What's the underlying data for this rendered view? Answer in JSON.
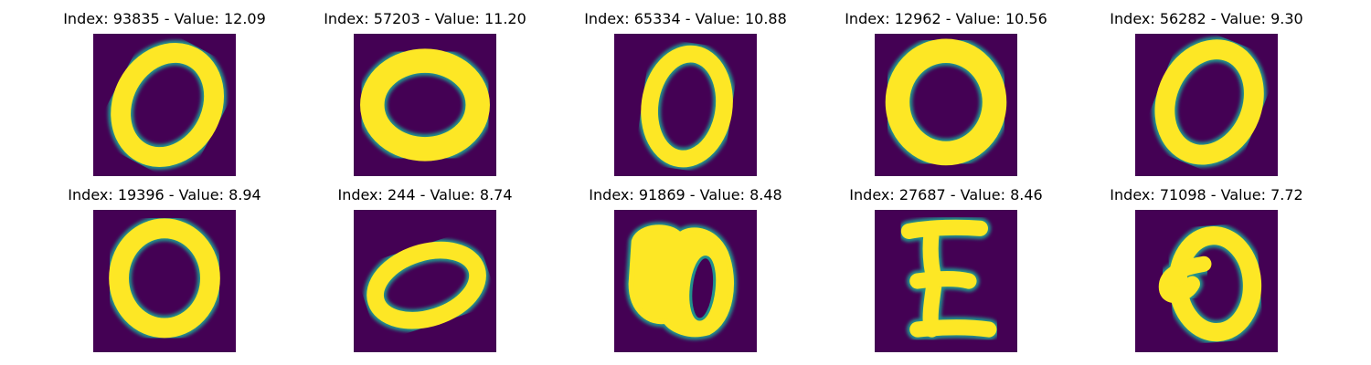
{
  "figure": {
    "rows": 2,
    "columns": 5,
    "colormap": "viridis",
    "background_color": "#440154",
    "foreground_color": "#fde725",
    "edge_color": "#21918c",
    "panels": [
      {
        "title": "Index: 93835 - Value: 12.09",
        "content": "handwritten digit 0, slanted ring"
      },
      {
        "title": "Index: 57203 - Value: 11.20",
        "content": "handwritten digit 0, thick wide ring"
      },
      {
        "title": "Index: 65334 - Value: 10.88",
        "content": "handwritten digit 0, upright oval"
      },
      {
        "title": "Index: 12962 - Value: 10.56",
        "content": "handwritten digit 0, thick blocky ring"
      },
      {
        "title": "Index: 56282 - Value: 9.30",
        "content": "handwritten digit 0, tilted ring"
      },
      {
        "title": "Index: 19396 - Value: 8.94",
        "content": "handwritten digit 0, round ring"
      },
      {
        "title": "Index: 244 - Value: 8.74",
        "content": "handwritten digit 0, flat tilted ellipse"
      },
      {
        "title": "Index: 91869 - Value: 8.48",
        "content": "handwritten digit 0, heavily filled left side"
      },
      {
        "title": "Index: 27687 - Value: 8.46",
        "content": "handwritten letter E shape"
      },
      {
        "title": "Index: 71098 - Value: 7.72",
        "content": "handwritten digit 0 with small loop on left"
      }
    ]
  }
}
